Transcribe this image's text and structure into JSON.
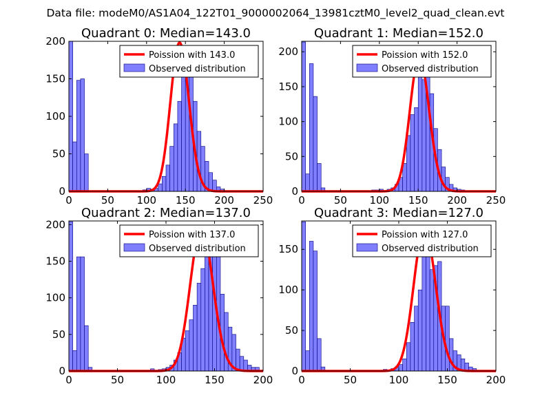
{
  "figure": {
    "suptitle": "Data file: modeM0/AS1A04_122T01_9000002064_13981cztM0_level2_quad_clean.evt",
    "colors": {
      "poisson_line": "#ff0000",
      "bar_fill": "#7f7fff",
      "bar_edge": "#00007f",
      "axes": "#000000",
      "background": "#ffffff"
    }
  },
  "chart_data": [
    {
      "type": "bar",
      "title": "Quadrant 0: Median=143.0",
      "legend": {
        "placement": "upper-right",
        "entries": [
          "Poission with 143.0",
          "Observed distribution"
        ]
      },
      "xlim": [
        0,
        250
      ],
      "ylim": [
        0,
        200
      ],
      "xticks": [
        0,
        50,
        100,
        150,
        200,
        250
      ],
      "yticks": [
        0,
        50,
        100,
        150,
        200
      ],
      "bin_width": 5,
      "bins": [
        [
          0,
          200
        ],
        [
          5,
          66
        ],
        [
          10,
          148
        ],
        [
          15,
          150
        ],
        [
          20,
          50
        ],
        [
          95,
          2
        ],
        [
          100,
          4
        ],
        [
          105,
          3
        ],
        [
          110,
          4
        ],
        [
          115,
          10
        ],
        [
          120,
          20
        ],
        [
          125,
          35
        ],
        [
          130,
          60
        ],
        [
          135,
          90
        ],
        [
          140,
          120
        ],
        [
          145,
          170
        ],
        [
          150,
          185
        ],
        [
          155,
          170
        ],
        [
          160,
          120
        ],
        [
          165,
          80
        ],
        [
          170,
          60
        ],
        [
          175,
          40
        ],
        [
          180,
          25
        ],
        [
          185,
          15
        ],
        [
          190,
          6
        ],
        [
          195,
          3
        ]
      ],
      "poisson_mean": 143.0,
      "poisson_peak": 198
    },
    {
      "type": "bar",
      "title": "Quadrant 1: Median=152.0",
      "legend": {
        "placement": "upper-right",
        "entries": [
          "Poission with 152.0",
          "Observed distribution"
        ]
      },
      "xlim": [
        0,
        250
      ],
      "ylim": [
        0,
        215
      ],
      "xticks": [
        0,
        50,
        100,
        150,
        200,
        250
      ],
      "yticks": [
        0,
        50,
        100,
        150,
        200
      ],
      "bin_width": 5,
      "bins": [
        [
          0,
          214
        ],
        [
          5,
          25
        ],
        [
          10,
          183
        ],
        [
          15,
          136
        ],
        [
          20,
          40
        ],
        [
          25,
          5
        ],
        [
          90,
          2
        ],
        [
          95,
          2
        ],
        [
          100,
          3
        ],
        [
          105,
          1
        ],
        [
          110,
          3
        ],
        [
          115,
          5
        ],
        [
          120,
          10
        ],
        [
          125,
          20
        ],
        [
          130,
          40
        ],
        [
          135,
          80
        ],
        [
          140,
          110
        ],
        [
          145,
          120
        ],
        [
          150,
          185
        ],
        [
          155,
          160
        ],
        [
          160,
          165
        ],
        [
          165,
          140
        ],
        [
          170,
          90
        ],
        [
          175,
          60
        ],
        [
          180,
          35
        ],
        [
          185,
          20
        ],
        [
          190,
          10
        ],
        [
          195,
          5
        ],
        [
          200,
          3
        ],
        [
          205,
          2
        ]
      ],
      "poisson_mean": 152.0,
      "poisson_peak": 193
    },
    {
      "type": "bar",
      "title": "Quadrant 2: Median=137.0",
      "legend": {
        "placement": "upper-right",
        "entries": [
          "Poission with 137.0",
          "Observed distribution"
        ]
      },
      "xlim": [
        0,
        200
      ],
      "ylim": [
        0,
        205
      ],
      "xticks": [
        0,
        50,
        100,
        150,
        200
      ],
      "yticks": [
        0,
        50,
        100,
        150,
        200
      ],
      "bin_width": 4,
      "bins": [
        [
          0,
          204
        ],
        [
          4,
          28
        ],
        [
          8,
          156
        ],
        [
          12,
          156
        ],
        [
          16,
          62
        ],
        [
          20,
          5
        ],
        [
          84,
          3
        ],
        [
          92,
          2
        ],
        [
          96,
          3
        ],
        [
          100,
          5
        ],
        [
          104,
          8
        ],
        [
          108,
          15
        ],
        [
          112,
          25
        ],
        [
          116,
          45
        ],
        [
          120,
          55
        ],
        [
          124,
          70
        ],
        [
          128,
          90
        ],
        [
          132,
          120
        ],
        [
          136,
          140
        ],
        [
          140,
          165
        ],
        [
          144,
          160
        ],
        [
          148,
          160
        ],
        [
          152,
          165
        ],
        [
          156,
          105
        ],
        [
          160,
          80
        ],
        [
          164,
          60
        ],
        [
          168,
          50
        ],
        [
          172,
          30
        ],
        [
          176,
          20
        ],
        [
          180,
          15
        ],
        [
          184,
          8
        ],
        [
          188,
          5
        ],
        [
          192,
          5
        ]
      ],
      "poisson_mean": 137.0,
      "poisson_peak": 196
    },
    {
      "type": "bar",
      "title": "Quadrant 3: Median=127.0",
      "legend": {
        "placement": "upper-right",
        "entries": [
          "Poission with 127.0",
          "Observed distribution"
        ]
      },
      "xlim": [
        0,
        200
      ],
      "ylim": [
        0,
        185
      ],
      "xticks": [
        0,
        50,
        100,
        150,
        200
      ],
      "yticks": [
        0,
        50,
        100,
        150
      ],
      "bin_width": 4,
      "bins": [
        [
          0,
          184
        ],
        [
          4,
          25
        ],
        [
          8,
          160
        ],
        [
          12,
          148
        ],
        [
          16,
          40
        ],
        [
          20,
          5
        ],
        [
          84,
          2
        ],
        [
          92,
          3
        ],
        [
          96,
          5
        ],
        [
          100,
          8
        ],
        [
          104,
          15
        ],
        [
          108,
          35
        ],
        [
          112,
          60
        ],
        [
          116,
          80
        ],
        [
          120,
          100
        ],
        [
          124,
          145
        ],
        [
          128,
          155
        ],
        [
          132,
          125
        ],
        [
          136,
          130
        ],
        [
          140,
          135
        ],
        [
          144,
          80
        ],
        [
          148,
          80
        ],
        [
          152,
          40
        ],
        [
          156,
          25
        ],
        [
          160,
          20
        ],
        [
          164,
          15
        ],
        [
          168,
          10
        ],
        [
          172,
          5
        ],
        [
          176,
          3
        ],
        [
          180,
          1
        ]
      ],
      "poisson_mean": 127.0,
      "poisson_peak": 176
    }
  ]
}
